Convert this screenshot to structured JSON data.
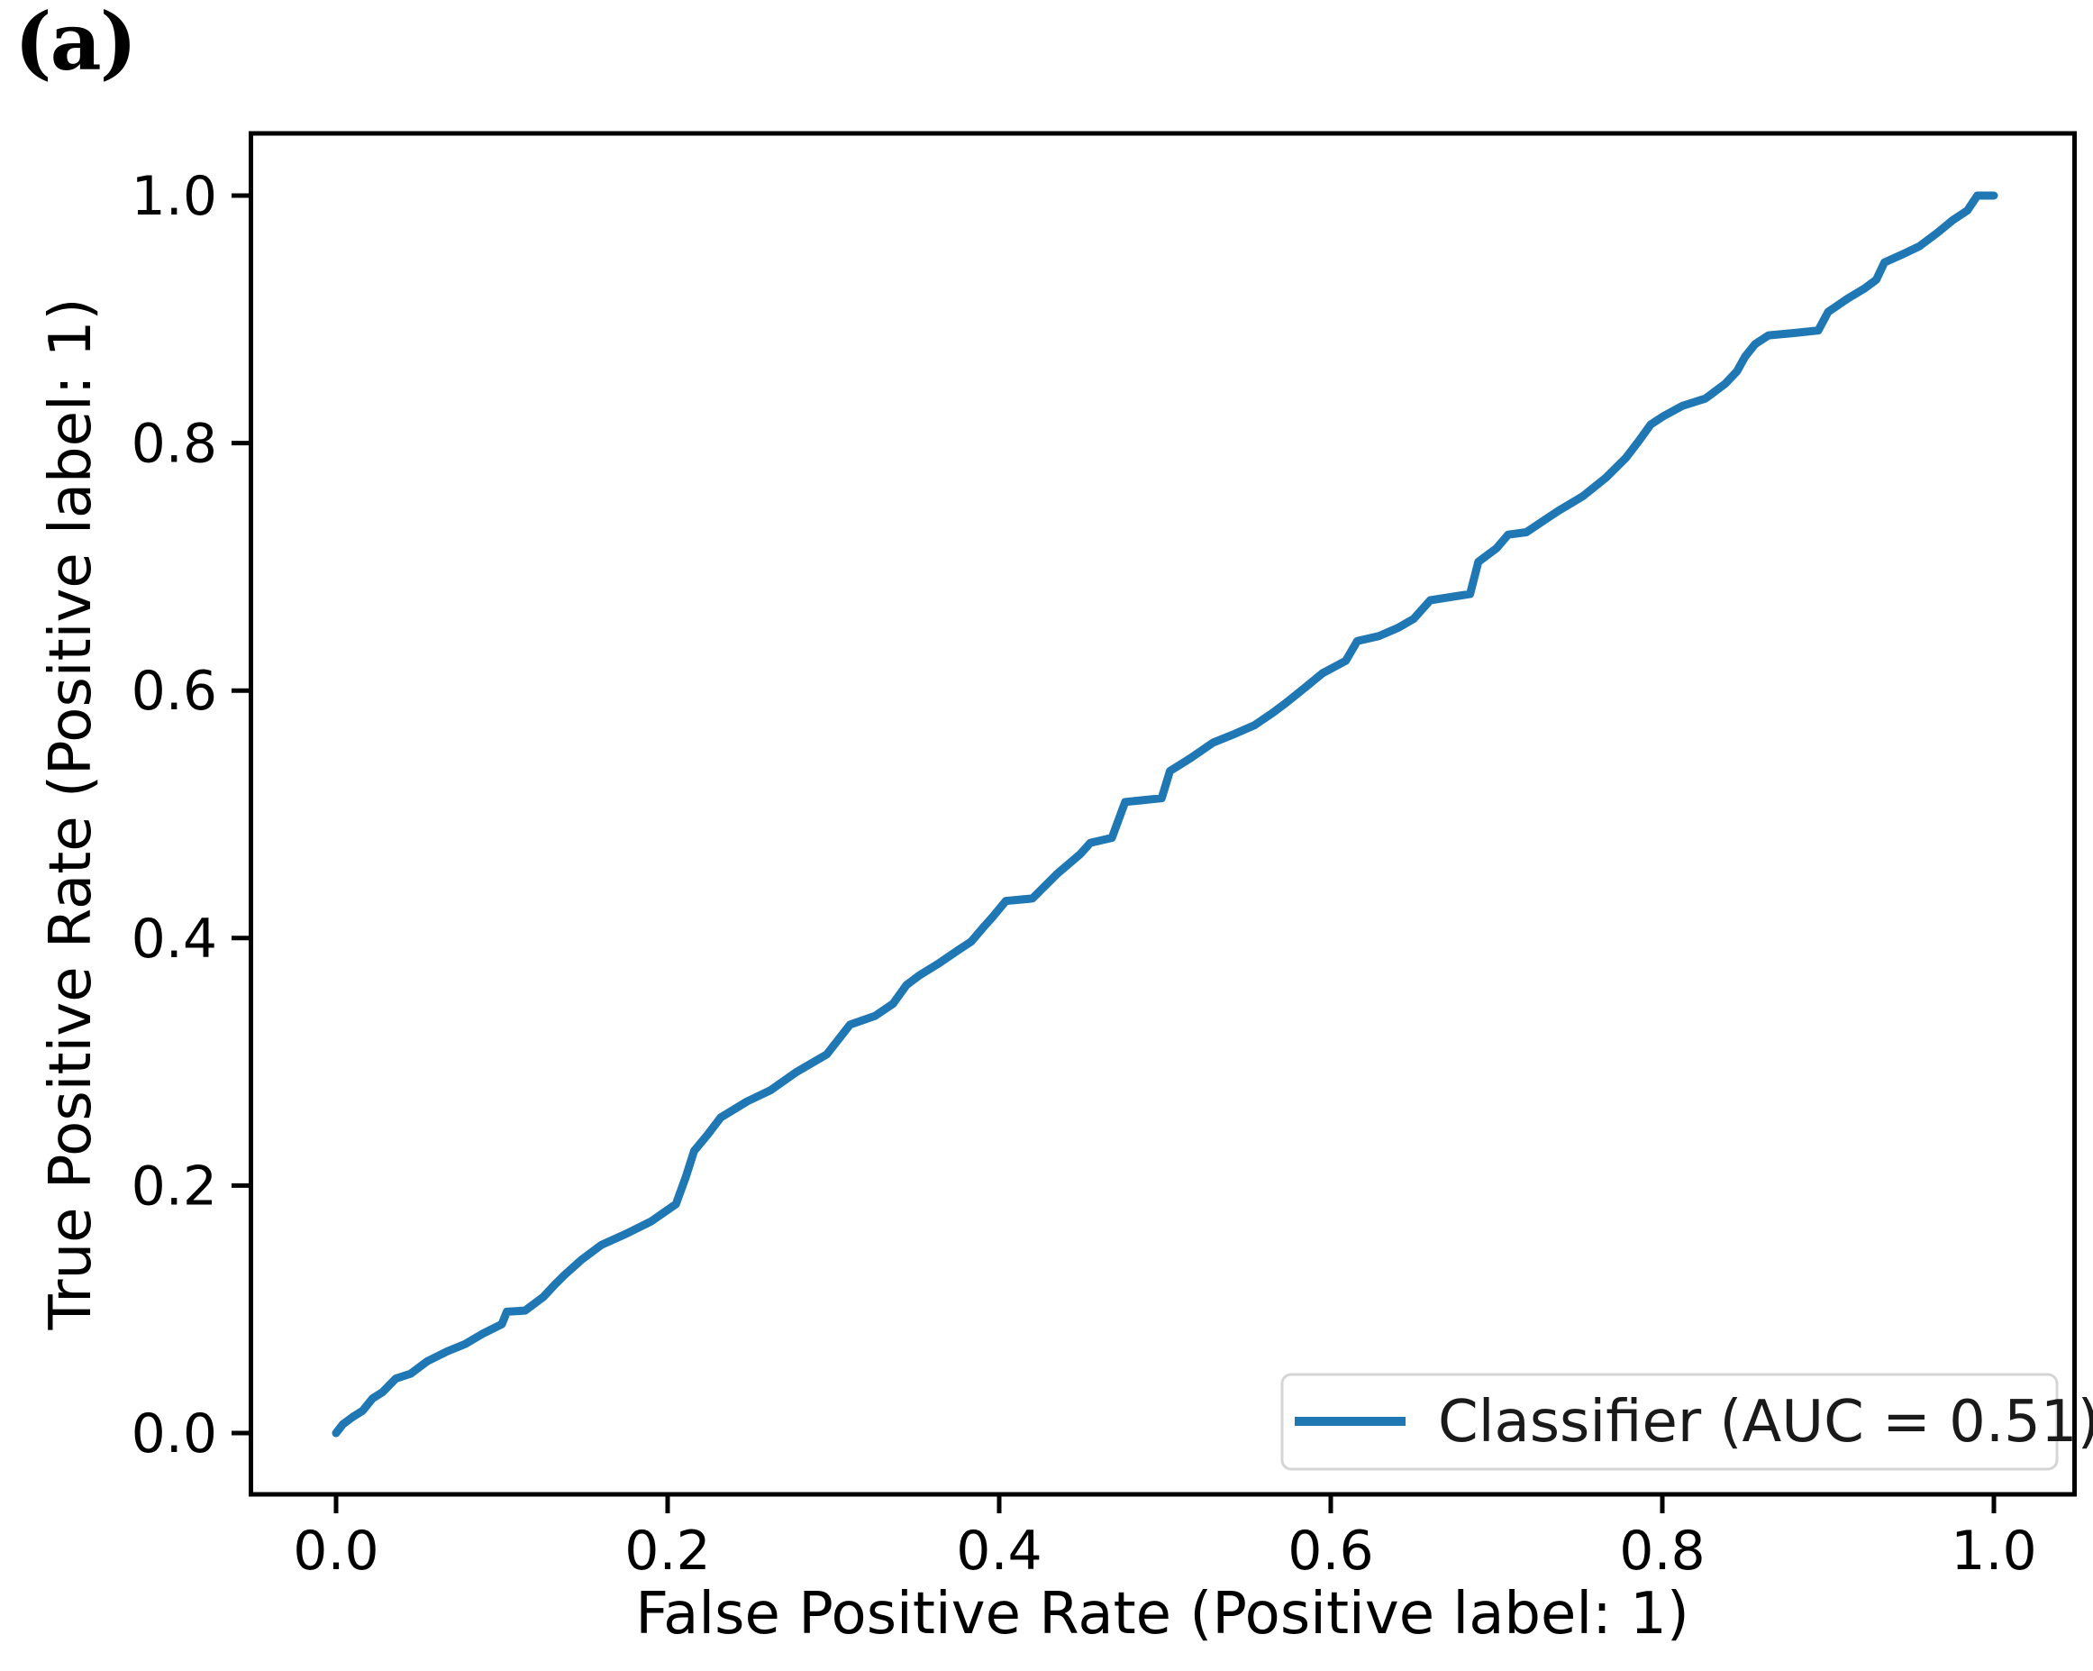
{
  "figure": {
    "panel_label": "(a)",
    "background": "#ffffff"
  },
  "chart_data": {
    "type": "line",
    "title": "",
    "xlabel": "False Positive Rate (Positive label: 1)",
    "ylabel": "True Positive Rate (Positive label: 1)",
    "xlim": [
      0.0,
      1.0
    ],
    "ylim": [
      0.0,
      1.0
    ],
    "axis_margin_fraction": 0.05,
    "grid": false,
    "x_tick_labels": [
      "0.0",
      "0.2",
      "0.4",
      "0.6",
      "0.8",
      "1.0"
    ],
    "x_tick_values": [
      0.0,
      0.2,
      0.4,
      0.6,
      0.8,
      1.0
    ],
    "y_tick_labels": [
      "0.0",
      "0.2",
      "0.4",
      "0.6",
      "0.8",
      "1.0"
    ],
    "y_tick_values": [
      0.0,
      0.2,
      0.4,
      0.6,
      0.8,
      1.0
    ],
    "legend": {
      "position": "lower right",
      "label": "Classifier (AUC = 0.51)",
      "border_color": "#d5d5d5",
      "background": "#ffffff"
    },
    "series": [
      {
        "name": "Classifier (AUC = 0.51)",
        "auc": 0.51,
        "color": "#1f77b4",
        "points": [
          [
            0.0,
            0.0
          ],
          [
            0.004,
            0.007
          ],
          [
            0.01,
            0.013
          ],
          [
            0.016,
            0.018
          ],
          [
            0.022,
            0.028
          ],
          [
            0.028,
            0.033
          ],
          [
            0.036,
            0.044
          ],
          [
            0.045,
            0.048
          ],
          [
            0.055,
            0.058
          ],
          [
            0.067,
            0.066
          ],
          [
            0.078,
            0.072
          ],
          [
            0.088,
            0.08
          ],
          [
            0.1,
            0.088
          ],
          [
            0.103,
            0.098
          ],
          [
            0.114,
            0.099
          ],
          [
            0.125,
            0.11
          ],
          [
            0.132,
            0.12
          ],
          [
            0.138,
            0.128
          ],
          [
            0.148,
            0.14
          ],
          [
            0.16,
            0.152
          ],
          [
            0.175,
            0.161
          ],
          [
            0.19,
            0.171
          ],
          [
            0.205,
            0.185
          ],
          [
            0.211,
            0.207
          ],
          [
            0.216,
            0.228
          ],
          [
            0.224,
            0.241
          ],
          [
            0.232,
            0.255
          ],
          [
            0.248,
            0.268
          ],
          [
            0.262,
            0.277
          ],
          [
            0.278,
            0.292
          ],
          [
            0.296,
            0.306
          ],
          [
            0.31,
            0.33
          ],
          [
            0.325,
            0.337
          ],
          [
            0.336,
            0.347
          ],
          [
            0.344,
            0.362
          ],
          [
            0.352,
            0.37
          ],
          [
            0.363,
            0.379
          ],
          [
            0.375,
            0.39
          ],
          [
            0.383,
            0.397
          ],
          [
            0.39,
            0.408
          ],
          [
            0.396,
            0.417
          ],
          [
            0.404,
            0.43
          ],
          [
            0.42,
            0.432
          ],
          [
            0.435,
            0.452
          ],
          [
            0.449,
            0.468
          ],
          [
            0.455,
            0.477
          ],
          [
            0.468,
            0.481
          ],
          [
            0.476,
            0.51
          ],
          [
            0.498,
            0.513
          ],
          [
            0.503,
            0.535
          ],
          [
            0.515,
            0.545
          ],
          [
            0.529,
            0.558
          ],
          [
            0.542,
            0.565
          ],
          [
            0.554,
            0.572
          ],
          [
            0.565,
            0.582
          ],
          [
            0.573,
            0.59
          ],
          [
            0.585,
            0.603
          ],
          [
            0.595,
            0.614
          ],
          [
            0.609,
            0.624
          ],
          [
            0.616,
            0.64
          ],
          [
            0.629,
            0.644
          ],
          [
            0.641,
            0.651
          ],
          [
            0.65,
            0.658
          ],
          [
            0.66,
            0.673
          ],
          [
            0.684,
            0.678
          ],
          [
            0.689,
            0.704
          ],
          [
            0.7,
            0.715
          ],
          [
            0.707,
            0.726
          ],
          [
            0.718,
            0.728
          ],
          [
            0.728,
            0.737
          ],
          [
            0.737,
            0.745
          ],
          [
            0.752,
            0.757
          ],
          [
            0.766,
            0.772
          ],
          [
            0.778,
            0.788
          ],
          [
            0.786,
            0.802
          ],
          [
            0.793,
            0.815
          ],
          [
            0.801,
            0.822
          ],
          [
            0.812,
            0.83
          ],
          [
            0.826,
            0.836
          ],
          [
            0.838,
            0.848
          ],
          [
            0.845,
            0.858
          ],
          [
            0.85,
            0.87
          ],
          [
            0.856,
            0.88
          ],
          [
            0.864,
            0.887
          ],
          [
            0.88,
            0.889
          ],
          [
            0.894,
            0.891
          ],
          [
            0.9,
            0.906
          ],
          [
            0.912,
            0.917
          ],
          [
            0.922,
            0.925
          ],
          [
            0.929,
            0.932
          ],
          [
            0.934,
            0.946
          ],
          [
            0.944,
            0.952
          ],
          [
            0.955,
            0.959
          ],
          [
            0.966,
            0.97
          ],
          [
            0.975,
            0.98
          ],
          [
            0.984,
            0.988
          ],
          [
            0.99,
            1.0
          ],
          [
            1.0,
            1.0
          ]
        ]
      }
    ]
  }
}
